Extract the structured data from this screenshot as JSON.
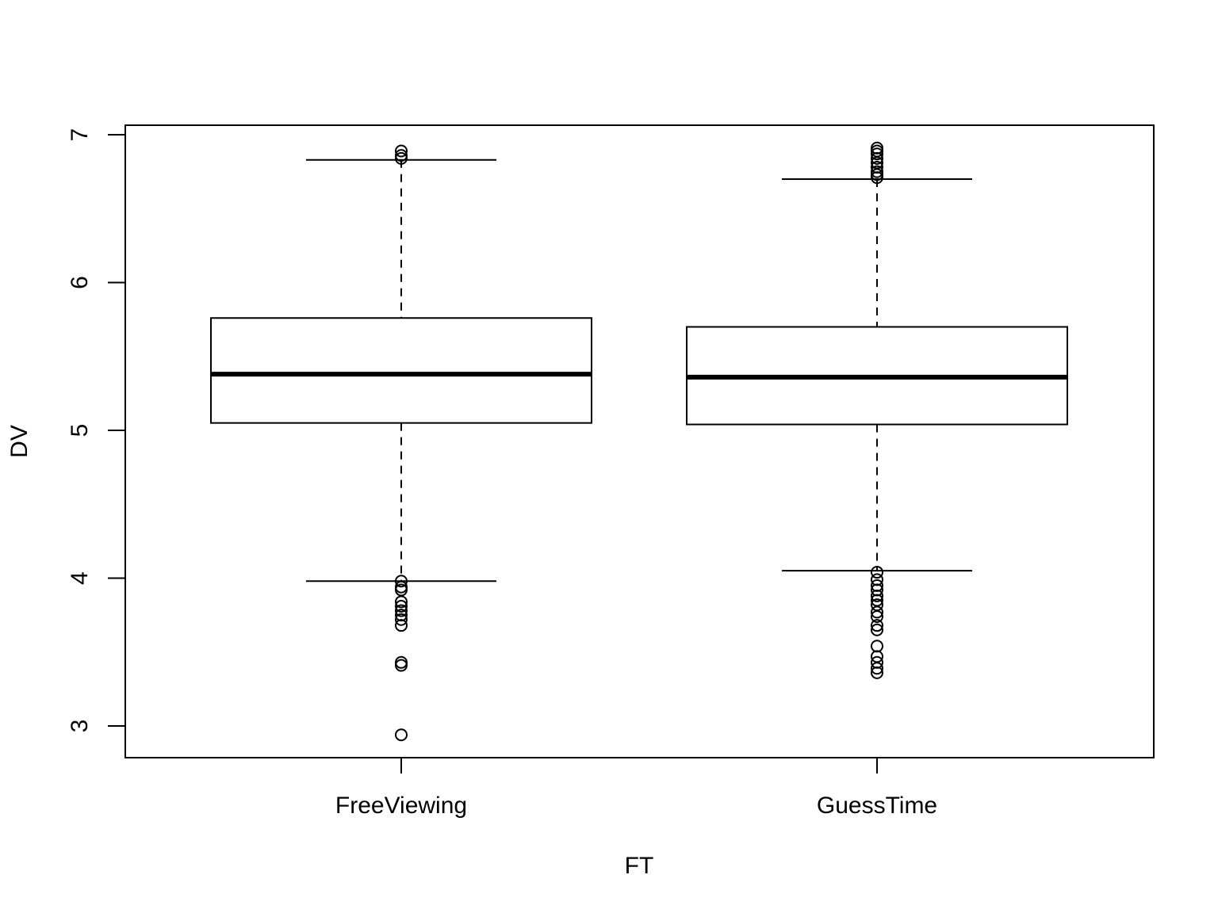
{
  "chart_data": {
    "type": "boxplot",
    "title": "",
    "xlabel": "FT",
    "ylabel": "DV",
    "ylim": [
      2.79,
      7.07
    ],
    "yticks": [
      3,
      4,
      5,
      6,
      7
    ],
    "grid": false,
    "legend": "none",
    "categories": [
      "FreeViewing",
      "GuessTime"
    ],
    "boxes": [
      {
        "category": "FreeViewing",
        "whisker_low": 3.98,
        "q1": 5.05,
        "median": 5.38,
        "q3": 5.76,
        "whisker_high": 6.83,
        "outliers": [
          6.84,
          6.86,
          6.89,
          3.98,
          3.94,
          3.92,
          3.84,
          3.81,
          3.78,
          3.75,
          3.72,
          3.68,
          3.43,
          3.41,
          2.94
        ]
      },
      {
        "category": "GuessTime",
        "whisker_low": 4.05,
        "q1": 5.04,
        "median": 5.36,
        "q3": 5.7,
        "whisker_high": 6.7,
        "outliers": [
          6.71,
          6.73,
          6.75,
          6.78,
          6.81,
          6.84,
          6.87,
          6.89,
          6.91,
          4.04,
          3.99,
          3.95,
          3.92,
          3.88,
          3.85,
          3.82,
          3.77,
          3.74,
          3.68,
          3.65,
          3.54,
          3.47,
          3.43,
          3.39,
          3.36
        ]
      }
    ]
  }
}
